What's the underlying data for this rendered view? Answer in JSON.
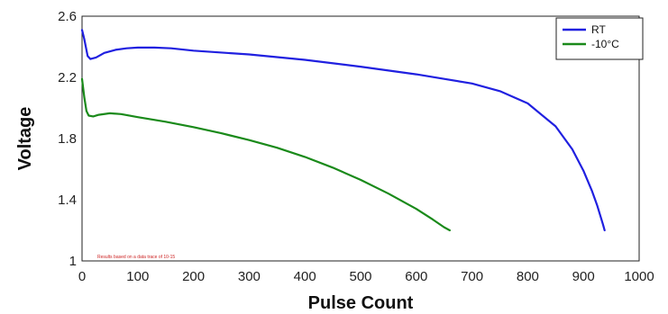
{
  "chart_data": {
    "type": "line",
    "xlabel": "Pulse Count",
    "ylabel": "Voltage",
    "xlim": [
      0,
      1000
    ],
    "ylim": [
      1,
      2.6
    ],
    "xticks": [
      0,
      100,
      200,
      300,
      400,
      500,
      600,
      700,
      800,
      900,
      1000
    ],
    "yticks": [
      1,
      1.4,
      1.8,
      2.2,
      2.6
    ],
    "ytick_labels": [
      "1",
      "1.4",
      "1.8",
      "2.2",
      "2.6"
    ],
    "grid": false,
    "legend_position": "top-right",
    "note": "Results based on a data trace of 10-15",
    "series": [
      {
        "name": "RT",
        "color": "#2020e0",
        "x": [
          0,
          4,
          10,
          15,
          25,
          40,
          60,
          80,
          100,
          130,
          160,
          200,
          300,
          400,
          500,
          600,
          650,
          700,
          750,
          800,
          850,
          880,
          900,
          915,
          925,
          935,
          938
        ],
        "y": [
          2.51,
          2.45,
          2.34,
          2.32,
          2.33,
          2.36,
          2.38,
          2.39,
          2.395,
          2.395,
          2.39,
          2.375,
          2.35,
          2.315,
          2.27,
          2.22,
          2.19,
          2.16,
          2.11,
          2.03,
          1.88,
          1.73,
          1.59,
          1.46,
          1.36,
          1.24,
          1.2
        ]
      },
      {
        "name": "-10°C",
        "color": "#1a8a1a",
        "x": [
          0,
          4,
          8,
          12,
          20,
          30,
          50,
          70,
          100,
          150,
          200,
          250,
          300,
          350,
          400,
          450,
          500,
          550,
          600,
          630,
          650,
          660
        ],
        "y": [
          2.19,
          2.07,
          1.98,
          1.95,
          1.945,
          1.955,
          1.965,
          1.96,
          1.94,
          1.91,
          1.875,
          1.835,
          1.79,
          1.74,
          1.68,
          1.61,
          1.53,
          1.44,
          1.34,
          1.27,
          1.22,
          1.2
        ]
      }
    ]
  }
}
